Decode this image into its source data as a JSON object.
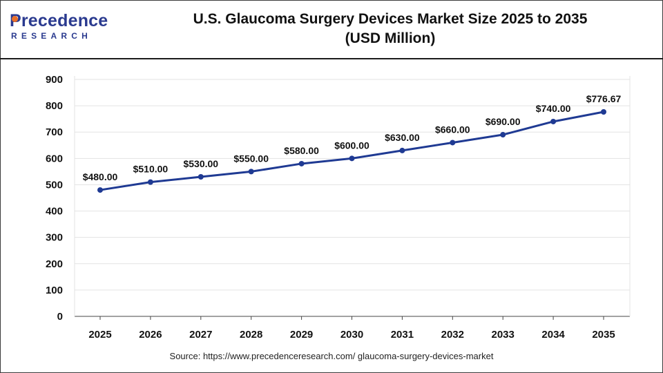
{
  "logo": {
    "word": "recedence",
    "initial": "P",
    "sub": "RESEARCH"
  },
  "title_line1": "U.S. Glaucoma Surgery Devices Market Size 2025 to 2035",
  "title_line2": "(USD Million)",
  "source": "Source: https://www.precedenceresearch.com/ glaucoma-surgery-devices-market",
  "colors": {
    "line": "#1f3a93",
    "point": "#1f3a93",
    "grid": "#e3e3e3",
    "axis": "#444444",
    "logo": "#2a3a8f",
    "logo_accent": "#e9702a"
  },
  "chart_data": {
    "type": "line",
    "title": "U.S. Glaucoma Surgery Devices Market Size 2025 to 2035 (USD Million)",
    "xlabel": "",
    "ylabel": "",
    "ylim": [
      0,
      900
    ],
    "yticks": [
      0,
      100,
      200,
      300,
      400,
      500,
      600,
      700,
      800,
      900
    ],
    "grid": true,
    "categories": [
      "2025",
      "2026",
      "2027",
      "2028",
      "2029",
      "2030",
      "2031",
      "2032",
      "2033",
      "2034",
      "2035"
    ],
    "values": [
      480,
      510,
      530,
      550,
      580,
      600,
      630,
      660,
      690,
      740,
      776.67
    ],
    "labels": [
      "$480.00",
      "$510.00",
      "$530.00",
      "$550.00",
      "$580.00",
      "$600.00",
      "$630.00",
      "$660.00",
      "$690.00",
      "$740.00",
      "$776.67"
    ]
  }
}
